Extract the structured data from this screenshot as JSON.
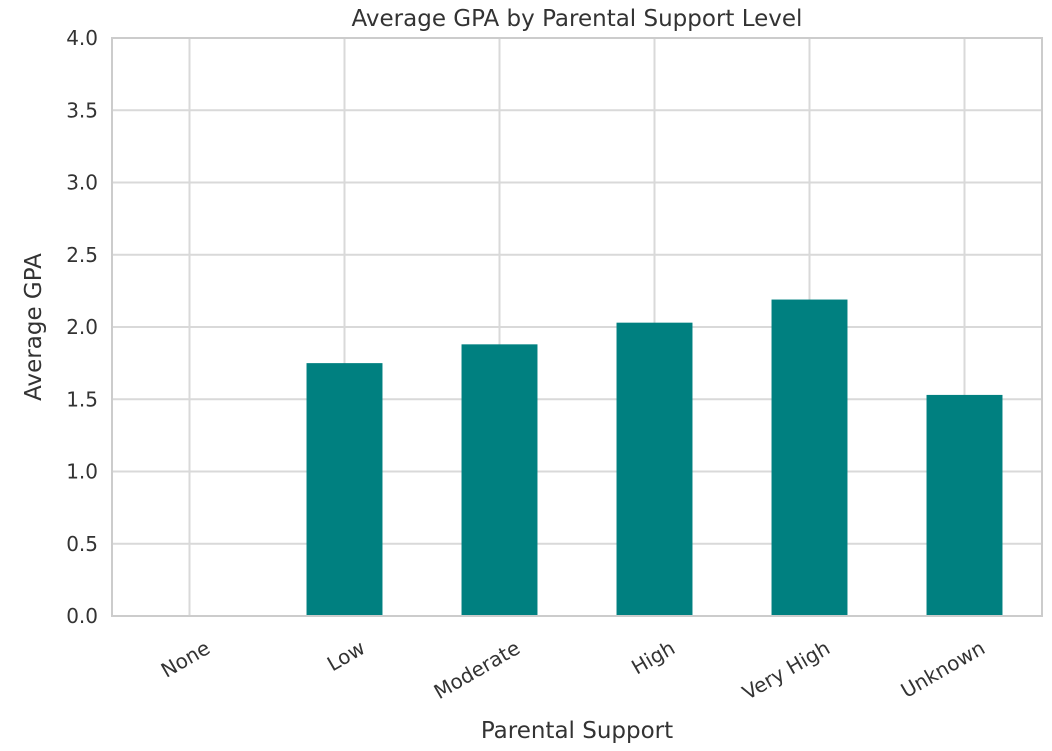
{
  "chart_data": {
    "type": "bar",
    "title": "Average GPA by Parental Support Level",
    "xlabel": "Parental Support",
    "ylabel": "Average GPA",
    "categories": [
      "None",
      "Low",
      "Moderate",
      "High",
      "Very High",
      "Unknown"
    ],
    "values": [
      0.0,
      1.75,
      1.88,
      2.03,
      2.19,
      1.53
    ],
    "ylim": [
      0,
      4.0
    ],
    "yticks": [
      "0.0",
      "0.5",
      "1.0",
      "1.5",
      "2.0",
      "2.5",
      "3.0",
      "3.5",
      "4.0"
    ],
    "grid": true,
    "bar_color": "#008080",
    "grid_color": "#d9d9d9",
    "spine_color": "#cccccc"
  }
}
